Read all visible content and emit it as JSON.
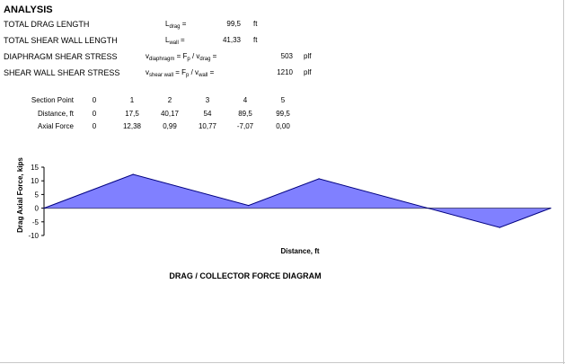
{
  "heading": "ANALYSIS",
  "properties": [
    {
      "label": "TOTAL DRAG LENGTH",
      "symbol": "L",
      "sub": "drag",
      "op": "=",
      "value": "99,5",
      "unit": "ft"
    },
    {
      "label": "TOTAL SHEAR WALL LENGTH",
      "symbol": "L",
      "sub": "wall",
      "op": "=",
      "value": "41,33",
      "unit": "ft"
    },
    {
      "label": "DIAPHRAGM SHEAR STRESS",
      "symbol": "v",
      "sub": "diaphragm",
      "eq1": "= F",
      "eq1sub": "p",
      "eq2": "/ v",
      "eq2sub": "drag",
      "op": "=",
      "value": "503",
      "unit": "plf"
    },
    {
      "label": "SHEAR WALL SHEAR STRESS",
      "symbol": "v",
      "sub": "shear wall",
      "eq1": "= F",
      "eq1sub": "p",
      "eq2": "/ v",
      "eq2sub": "wall",
      "op": "=",
      "value": "1210",
      "unit": "plf"
    }
  ],
  "table": {
    "row_labels": [
      "Section Point",
      "Distance, ft",
      "Axial Force"
    ],
    "section_points": [
      "0",
      "1",
      "2",
      "3",
      "4",
      "5"
    ],
    "distances": [
      "0",
      "17,5",
      "40,17",
      "54",
      "89,5",
      "99,5"
    ],
    "axial_forces": [
      "0",
      "12,38",
      "0,99",
      "10,77",
      "-7,07",
      "0,00"
    ]
  },
  "chart_data": {
    "type": "area",
    "title": "DRAG / COLLECTOR FORCE DIAGRAM",
    "xlabel": "Distance, ft",
    "ylabel": "Drag Axial Force, kips",
    "x": [
      0,
      17.5,
      40.17,
      54,
      89.5,
      99.5
    ],
    "y": [
      0,
      12.38,
      0.99,
      10.77,
      -7.07,
      0.0
    ],
    "xlim": [
      0,
      99.5
    ],
    "ylim": [
      -10,
      15
    ],
    "yticks": [
      -10,
      -5,
      0,
      5,
      10,
      15
    ],
    "ytick_labels": [
      "-10",
      "-5",
      "0",
      "5",
      "10",
      "15"
    ],
    "grid": false,
    "fill_color": "#8080ff",
    "line_color": "#000080"
  }
}
